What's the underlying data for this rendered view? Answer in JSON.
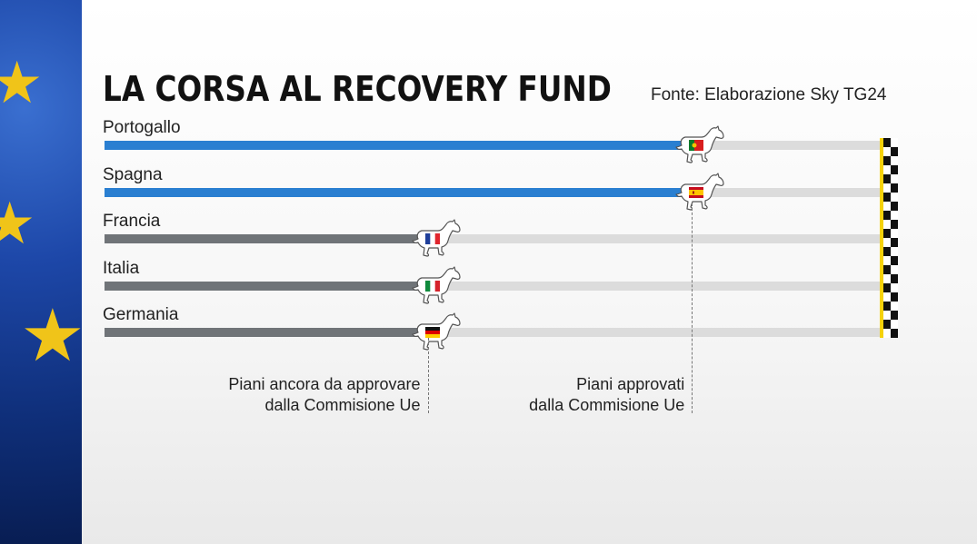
{
  "title": "LA CORSA AL RECOVERY FUND",
  "source": "Fonte: Elaborazione Sky TG24",
  "colors": {
    "approved": "#2a7fd1",
    "pending": "#707478",
    "track": "#dcdcdc",
    "finish_yellow": "#f5d20a"
  },
  "annotations": {
    "pending_line1": "Piani ancora da approvare",
    "pending_line2": "dalla Commisione Ue",
    "approved_line1": "Piani approvati",
    "approved_line2": "dalla Commisione Ue"
  },
  "chart_data": {
    "type": "bar",
    "orientation": "horizontal",
    "categories": [
      "Portogallo",
      "Spagna",
      "Francia",
      "Italia",
      "Germania"
    ],
    "status": [
      "approved",
      "approved",
      "pending",
      "pending",
      "pending"
    ],
    "values": [
      75,
      75,
      41,
      41,
      41
    ],
    "flag_icons": [
      "portugal-flag-icon",
      "spain-flag-icon",
      "france-flag-icon",
      "italy-flag-icon",
      "germany-flag-icon"
    ],
    "ylim": [
      0,
      100
    ],
    "grid": false,
    "legend": "none",
    "title": "LA CORSA AL RECOVERY FUND",
    "xlabel": "",
    "ylabel": ""
  }
}
